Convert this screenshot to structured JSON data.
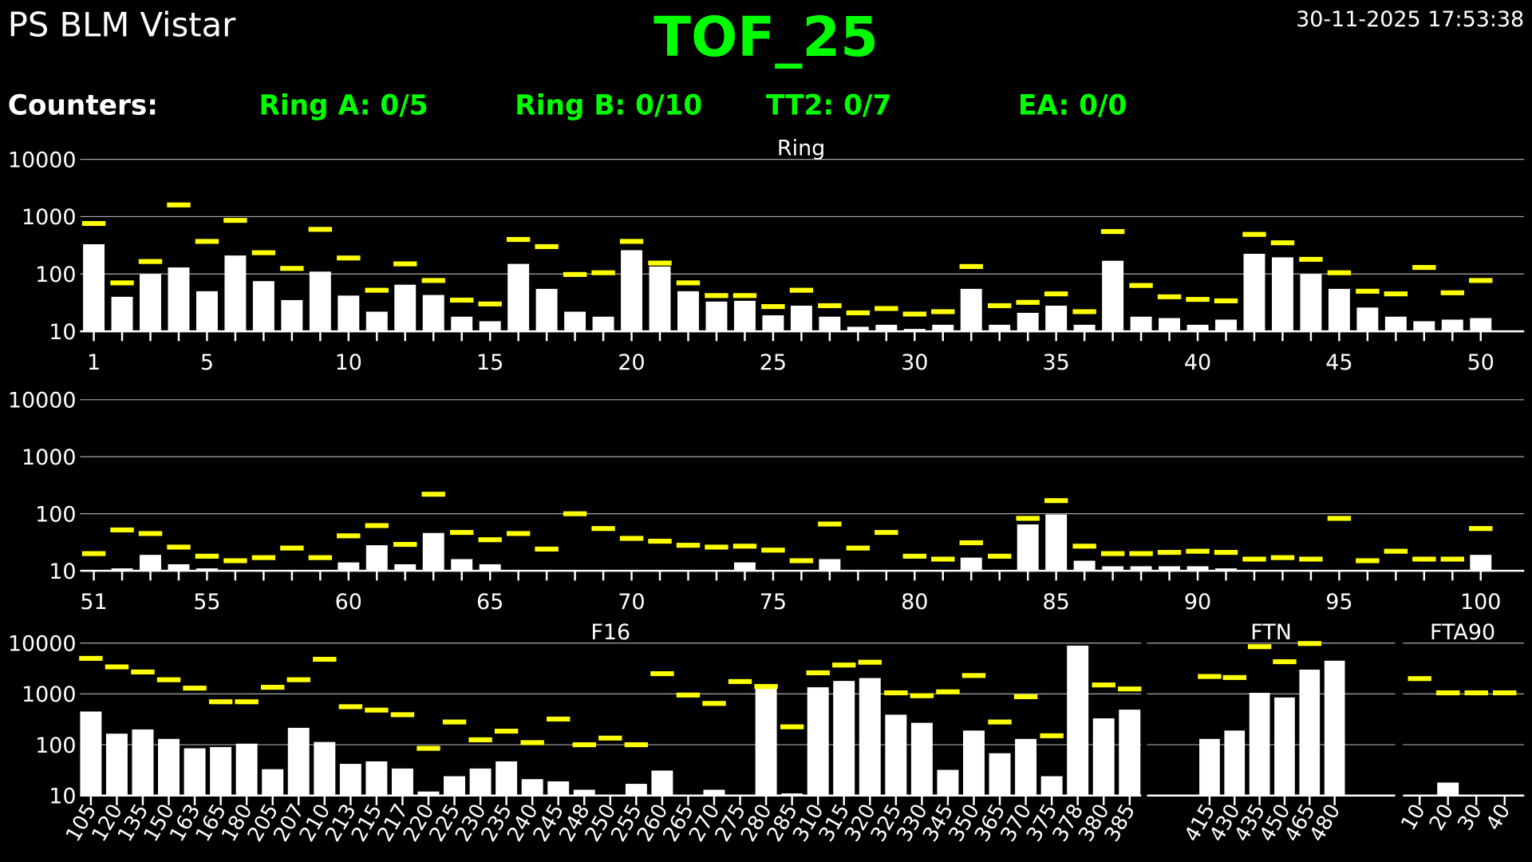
{
  "header": {
    "app_title": "PS BLM Vistar",
    "main_title": "TOF_25",
    "timestamp": "30-11-2025 17:53:38",
    "counters_label": "Counters:",
    "counters": [
      "Ring A: 0/5",
      "Ring B: 0/10",
      "TT2: 0/7",
      "EA: 0/0"
    ]
  },
  "colors": {
    "background": "#000000",
    "title": "#00ff00",
    "bar": "#ffffff",
    "threshold": "#ffff00",
    "grid": "#aaaaaa"
  },
  "chart_data": [
    {
      "type": "bar",
      "title": "Ring",
      "yscale": "log",
      "ylim": [
        10,
        10000
      ],
      "yticks": [
        "10",
        "100",
        "1000",
        "10000"
      ],
      "categories": [
        "1",
        "2",
        "3",
        "4",
        "5",
        "6",
        "7",
        "8",
        "9",
        "10",
        "11",
        "12",
        "13",
        "14",
        "15",
        "16",
        "17",
        "18",
        "19",
        "20",
        "21",
        "22",
        "23",
        "24",
        "25",
        "26",
        "27",
        "28",
        "29",
        "30",
        "31",
        "32",
        "33",
        "34",
        "35",
        "36",
        "37",
        "38",
        "39",
        "40",
        "41",
        "42",
        "43",
        "44",
        "45",
        "46",
        "47",
        "48",
        "49",
        "50"
      ],
      "tick_labels": [
        "1",
        "5",
        "10",
        "15",
        "20",
        "25",
        "30",
        "35",
        "40",
        "45",
        "50"
      ],
      "series": [
        {
          "kind": "bars",
          "values": [
            330,
            40,
            100,
            130,
            50,
            210,
            75,
            35,
            110,
            42,
            22,
            65,
            43,
            18,
            15,
            150,
            55,
            22,
            18,
            260,
            135,
            50,
            33,
            34,
            19,
            28,
            18,
            12,
            13,
            11,
            13,
            55,
            13,
            21,
            28,
            13,
            170,
            18,
            17,
            13,
            16,
            225,
            195,
            100,
            55,
            26,
            18,
            15,
            16,
            17
          ]
        },
        {
          "kind": "thresholds",
          "values": [
            760,
            70,
            165,
            1600,
            370,
            860,
            235,
            125,
            600,
            190,
            52,
            150,
            77,
            35,
            30,
            400,
            300,
            98,
            105,
            370,
            155,
            70,
            42,
            42,
            27,
            52,
            28,
            21,
            25,
            20,
            22,
            135,
            28,
            32,
            45,
            22,
            550,
            63,
            40,
            36,
            34,
            490,
            350,
            180,
            105,
            50,
            45,
            130,
            47,
            77
          ]
        }
      ]
    },
    {
      "type": "bar",
      "title": "",
      "yscale": "log",
      "ylim": [
        10,
        10000
      ],
      "yticks": [
        "10",
        "100",
        "1000",
        "10000"
      ],
      "categories": [
        "51",
        "52",
        "53",
        "54",
        "55",
        "56",
        "57",
        "58",
        "59",
        "60",
        "61",
        "62",
        "63",
        "64",
        "65",
        "66",
        "67",
        "68",
        "69",
        "70",
        "71",
        "72",
        "73",
        "74",
        "75",
        "76",
        "77",
        "78",
        "79",
        "80",
        "81",
        "82",
        "83",
        "84",
        "85",
        "86",
        "87",
        "88",
        "89",
        "90",
        "91",
        "92",
        "93",
        "94",
        "95",
        "96",
        "97",
        "98",
        "99",
        "100"
      ],
      "tick_labels": [
        "51",
        "55",
        "60",
        "65",
        "70",
        "75",
        "80",
        "85",
        "90",
        "95",
        "100"
      ],
      "series": [
        {
          "kind": "bars",
          "values": [
            10,
            11,
            19,
            13,
            11,
            10,
            10,
            10,
            10,
            14,
            28,
            13,
            46,
            16,
            13,
            10,
            10,
            10,
            10,
            10,
            10,
            10,
            10,
            14,
            10,
            10,
            16,
            10,
            10,
            10,
            10,
            17,
            10,
            65,
            97,
            15,
            12,
            12,
            12,
            12,
            11,
            10,
            10,
            10,
            10,
            10,
            10,
            10,
            10,
            19
          ]
        },
        {
          "kind": "thresholds",
          "values": [
            20,
            52,
            45,
            26,
            18,
            15,
            17,
            25,
            17,
            41,
            62,
            29,
            220,
            47,
            35,
            45,
            24,
            100,
            55,
            37,
            33,
            28,
            26,
            27,
            23,
            15,
            66,
            25,
            47,
            18,
            16,
            31,
            18,
            83,
            170,
            27,
            20,
            20,
            21,
            22,
            21,
            16,
            17,
            16,
            83,
            15,
            22,
            16,
            16,
            55
          ]
        }
      ]
    },
    {
      "type": "bar",
      "title": "F16",
      "yscale": "log",
      "ylim": [
        10,
        10000
      ],
      "yticks": [
        "10",
        "100",
        "1000",
        "10000"
      ],
      "categories": [
        "105",
        "120",
        "135",
        "150",
        "163",
        "165",
        "180",
        "205",
        "207",
        "210",
        "213",
        "215",
        "217",
        "220",
        "225",
        "230",
        "235",
        "240",
        "245",
        "248",
        "250",
        "255",
        "260",
        "265",
        "270",
        "275",
        "280",
        "285",
        "310",
        "315",
        "320",
        "325",
        "330",
        "345",
        "350",
        "365",
        "370",
        "375",
        "378",
        "380",
        "385"
      ],
      "series": [
        {
          "kind": "bars",
          "values": [
            450,
            165,
            200,
            130,
            85,
            90,
            105,
            33,
            215,
            113,
            42,
            47,
            34,
            12,
            24,
            34,
            47,
            21,
            19,
            13,
            10,
            17,
            31,
            10,
            13,
            10,
            1300,
            11,
            1350,
            1800,
            2050,
            390,
            270,
            32,
            190,
            68,
            130,
            24,
            8900,
            330,
            490
          ]
        },
        {
          "kind": "thresholds",
          "values": [
            5000,
            3400,
            2700,
            1900,
            1300,
            700,
            700,
            1350,
            1900,
            4800,
            560,
            480,
            390,
            85,
            280,
            125,
            185,
            110,
            320,
            100,
            135,
            100,
            2500,
            950,
            650,
            1750,
            1400,
            225,
            2600,
            3700,
            4200,
            1050,
            920,
            1100,
            2300,
            280,
            880,
            150,
            null,
            1500,
            1250
          ]
        }
      ]
    },
    {
      "type": "bar",
      "title": "FTN",
      "yscale": "log",
      "ylim": [
        10,
        10000
      ],
      "categories": [
        "415",
        "430",
        "435",
        "450",
        "465",
        "480"
      ],
      "series": [
        {
          "kind": "bars",
          "values": [
            130,
            190,
            1050,
            850,
            3000,
            4500
          ]
        },
        {
          "kind": "thresholds",
          "values": [
            2200,
            2100,
            8500,
            4300,
            9800,
            null
          ]
        }
      ]
    },
    {
      "type": "bar",
      "title": "FTA90",
      "yscale": "log",
      "ylim": [
        10,
        10000
      ],
      "categories": [
        "10",
        "20",
        "30",
        "40"
      ],
      "series": [
        {
          "kind": "bars",
          "values": [
            10,
            18,
            10,
            10
          ]
        },
        {
          "kind": "thresholds",
          "values": [
            2000,
            1050,
            1050,
            1050
          ]
        }
      ]
    }
  ]
}
